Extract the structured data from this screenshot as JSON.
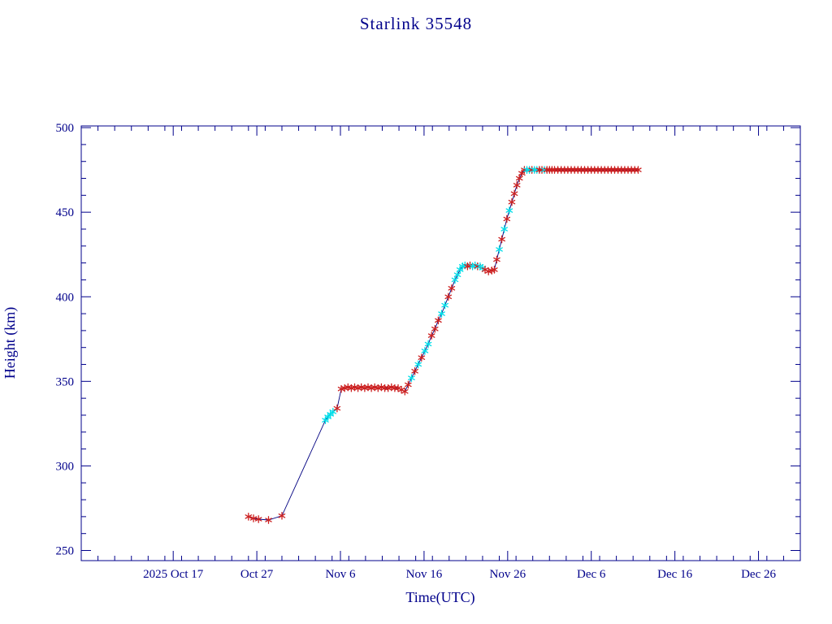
{
  "page": {
    "background": "#ffffff"
  },
  "chart_data": {
    "type": "line",
    "title": "Starlink 35548",
    "xlabel": "Time(UTC)",
    "ylabel": "Height (km)",
    "grid": false,
    "legend": "none",
    "colors": {
      "axis": "#00008b",
      "line": "#000080",
      "red_marker": "#cc2020",
      "cyan_marker": "#00dde8"
    },
    "x_axis": {
      "description": "days, 0 = 2025 Oct 6",
      "min": 0,
      "max": 86,
      "minor_step": 2,
      "major_ticks": [
        {
          "t": 11,
          "label": "2025 Oct 17"
        },
        {
          "t": 21,
          "label": "Oct 27"
        },
        {
          "t": 31,
          "label": "Nov 6"
        },
        {
          "t": 41,
          "label": "Nov 16"
        },
        {
          "t": 51,
          "label": "Nov 26"
        },
        {
          "t": 61,
          "label": "Dec 6"
        },
        {
          "t": 71,
          "label": "Dec 16"
        },
        {
          "t": 81,
          "label": "Dec 26"
        }
      ]
    },
    "y_axis": {
      "min": 244,
      "max": 501,
      "minor_step": 10,
      "major_ticks": [
        250,
        300,
        350,
        400,
        450,
        500
      ]
    },
    "series": [
      {
        "name": "height_km",
        "marker_key": "r = red asterisk, c = cyan asterisk",
        "points": [
          [
            20.0,
            270,
            "r"
          ],
          [
            20.6,
            269,
            "r"
          ],
          [
            21.2,
            268.5,
            "r"
          ],
          [
            22.4,
            268,
            "r"
          ],
          [
            24.0,
            270.5,
            "r"
          ],
          [
            29.2,
            327,
            "c"
          ],
          [
            29.5,
            329,
            "c"
          ],
          [
            29.8,
            330.5,
            "c"
          ],
          [
            30.1,
            332,
            "c"
          ],
          [
            30.6,
            334,
            "r"
          ],
          [
            31.1,
            345.5,
            "r"
          ],
          [
            31.5,
            346,
            "r"
          ],
          [
            31.9,
            346.5,
            "r"
          ],
          [
            32.3,
            346,
            "r"
          ],
          [
            32.7,
            346.5,
            "r"
          ],
          [
            33.1,
            346,
            "r"
          ],
          [
            33.5,
            346.5,
            "r"
          ],
          [
            33.9,
            346,
            "r"
          ],
          [
            34.3,
            346.5,
            "r"
          ],
          [
            34.7,
            346,
            "r"
          ],
          [
            35.1,
            346.5,
            "r"
          ],
          [
            35.5,
            346,
            "r"
          ],
          [
            35.9,
            346.5,
            "r"
          ],
          [
            36.3,
            346,
            "r"
          ],
          [
            36.7,
            346,
            "r"
          ],
          [
            37.1,
            346.5,
            "r"
          ],
          [
            37.5,
            346,
            "r"
          ],
          [
            37.9,
            346,
            "r"
          ],
          [
            38.3,
            345,
            "r"
          ],
          [
            38.7,
            344,
            "r"
          ],
          [
            39.1,
            348,
            "r"
          ],
          [
            39.5,
            352,
            "c"
          ],
          [
            39.9,
            356,
            "r"
          ],
          [
            40.3,
            360,
            "c"
          ],
          [
            40.7,
            364,
            "r"
          ],
          [
            41.1,
            368,
            "c"
          ],
          [
            41.5,
            372,
            "c"
          ],
          [
            41.9,
            377,
            "r"
          ],
          [
            42.3,
            381,
            "r"
          ],
          [
            42.7,
            386,
            "r"
          ],
          [
            43.1,
            390,
            "c"
          ],
          [
            43.5,
            395,
            "c"
          ],
          [
            43.9,
            400,
            "r"
          ],
          [
            44.3,
            405,
            "r"
          ],
          [
            44.7,
            410,
            "c"
          ],
          [
            45.0,
            413,
            "c"
          ],
          [
            45.3,
            416,
            "c"
          ],
          [
            45.6,
            418,
            "c"
          ],
          [
            45.9,
            418.5,
            "c"
          ],
          [
            46.2,
            418,
            "r"
          ],
          [
            46.5,
            418.5,
            "r"
          ],
          [
            46.8,
            418,
            "c"
          ],
          [
            47.1,
            418.5,
            "c"
          ],
          [
            47.4,
            418,
            "r"
          ],
          [
            47.7,
            418,
            "c"
          ],
          [
            48.0,
            417,
            "c"
          ],
          [
            48.3,
            416,
            "r"
          ],
          [
            48.7,
            415,
            "r"
          ],
          [
            49.1,
            415.5,
            "r"
          ],
          [
            49.4,
            416,
            "r"
          ],
          [
            49.7,
            422,
            "r"
          ],
          [
            50.0,
            428,
            "c"
          ],
          [
            50.3,
            434,
            "r"
          ],
          [
            50.6,
            440,
            "c"
          ],
          [
            50.9,
            446,
            "r"
          ],
          [
            51.2,
            451,
            "c"
          ],
          [
            51.5,
            456,
            "r"
          ],
          [
            51.8,
            461,
            "r"
          ],
          [
            52.1,
            466,
            "r"
          ],
          [
            52.4,
            470,
            "r"
          ],
          [
            52.7,
            473,
            "r"
          ],
          [
            53.0,
            475,
            "r"
          ],
          [
            53.3,
            475,
            "c"
          ],
          [
            53.6,
            475,
            "c"
          ],
          [
            53.9,
            475,
            "r"
          ],
          [
            54.2,
            475,
            "c"
          ],
          [
            54.5,
            475,
            "c"
          ],
          [
            54.8,
            475,
            "r"
          ],
          [
            55.1,
            475,
            "r"
          ],
          [
            55.4,
            475,
            "c"
          ],
          [
            55.7,
            475,
            "r"
          ],
          [
            56.0,
            475,
            "r"
          ],
          [
            56.3,
            475,
            "r"
          ],
          [
            56.6,
            475,
            "r"
          ],
          [
            57.0,
            475,
            "r"
          ],
          [
            57.4,
            475,
            "r"
          ],
          [
            57.8,
            475,
            "r"
          ],
          [
            58.2,
            475,
            "r"
          ],
          [
            58.6,
            475,
            "r"
          ],
          [
            59.0,
            475,
            "r"
          ],
          [
            59.4,
            475,
            "r"
          ],
          [
            59.8,
            475,
            "r"
          ],
          [
            60.2,
            475,
            "r"
          ],
          [
            60.6,
            475,
            "r"
          ],
          [
            61.0,
            475,
            "r"
          ],
          [
            61.4,
            475,
            "r"
          ],
          [
            61.8,
            475,
            "r"
          ],
          [
            62.2,
            475,
            "r"
          ],
          [
            62.6,
            475,
            "r"
          ],
          [
            63.0,
            475,
            "r"
          ],
          [
            63.4,
            475,
            "r"
          ],
          [
            63.8,
            475,
            "r"
          ],
          [
            64.2,
            475,
            "r"
          ],
          [
            64.6,
            475,
            "r"
          ],
          [
            65.0,
            475,
            "r"
          ],
          [
            65.4,
            475,
            "r"
          ],
          [
            65.8,
            475,
            "r"
          ],
          [
            66.2,
            475,
            "r"
          ],
          [
            66.6,
            475,
            "r"
          ]
        ]
      }
    ]
  }
}
